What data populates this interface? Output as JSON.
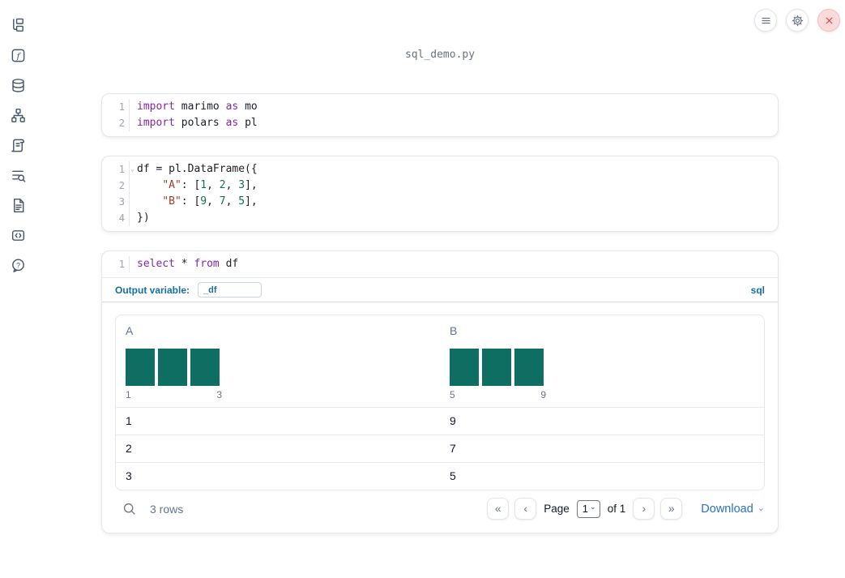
{
  "window": {
    "title": "sql_demo.py"
  },
  "topbar": {
    "buttons": [
      {
        "name": "notebook-menu",
        "icon": "hamburger-icon"
      },
      {
        "name": "settings",
        "icon": "gear-icon"
      },
      {
        "name": "shutdown",
        "icon": "close-icon"
      }
    ]
  },
  "sidebar": {
    "items": [
      {
        "name": "file-explorer",
        "icon": "file-tree-icon"
      },
      {
        "name": "variables",
        "icon": "function-icon"
      },
      {
        "name": "data-sources",
        "icon": "database-icon"
      },
      {
        "name": "dependency-graph",
        "icon": "graph-icon"
      },
      {
        "name": "outline",
        "icon": "scroll-icon"
      },
      {
        "name": "logs",
        "icon": "logs-search-icon"
      },
      {
        "name": "documentation",
        "icon": "document-icon"
      },
      {
        "name": "snippets",
        "icon": "code-snippet-icon"
      },
      {
        "name": "help",
        "icon": "help-icon"
      }
    ]
  },
  "cells": [
    {
      "lines": [
        {
          "num": "1",
          "tokens": [
            [
              "kw",
              "import"
            ],
            [
              "pl",
              " marimo "
            ],
            [
              "kw",
              "as"
            ],
            [
              "pl",
              " mo"
            ]
          ]
        },
        {
          "num": "2",
          "tokens": [
            [
              "kw",
              "import"
            ],
            [
              "pl",
              " polars "
            ],
            [
              "kw",
              "as"
            ],
            [
              "pl",
              " pl"
            ]
          ]
        }
      ]
    },
    {
      "lines": [
        {
          "num": "1",
          "fold": true,
          "tokens": [
            [
              "pl",
              "df = pl.DataFrame({"
            ]
          ]
        },
        {
          "num": "2",
          "tokens": [
            [
              "pl",
              "    "
            ],
            [
              "str",
              "\"A\""
            ],
            [
              "pl",
              ": ["
            ],
            [
              "num",
              "1"
            ],
            [
              "pl",
              ", "
            ],
            [
              "num",
              "2"
            ],
            [
              "pl",
              ", "
            ],
            [
              "num",
              "3"
            ],
            [
              "pl",
              "],"
            ]
          ]
        },
        {
          "num": "3",
          "tokens": [
            [
              "pl",
              "    "
            ],
            [
              "str",
              "\"B\""
            ],
            [
              "pl",
              ": ["
            ],
            [
              "num",
              "9"
            ],
            [
              "pl",
              ", "
            ],
            [
              "num",
              "7"
            ],
            [
              "pl",
              ", "
            ],
            [
              "num",
              "5"
            ],
            [
              "pl",
              "],"
            ]
          ]
        },
        {
          "num": "4",
          "tokens": [
            [
              "pl",
              "})"
            ]
          ]
        }
      ]
    },
    {
      "lines": [
        {
          "num": "1",
          "tokens": [
            [
              "kw",
              "select"
            ],
            [
              "pl",
              " * "
            ],
            [
              "kw",
              "from"
            ],
            [
              "pl",
              " df"
            ]
          ]
        }
      ]
    }
  ],
  "sql_cell": {
    "output_variable_label": "Output variable:",
    "output_variable_value": "_df",
    "language_badge": "sql"
  },
  "table": {
    "columns": [
      {
        "label": "A",
        "hist": {
          "bars": [
            1,
            1,
            1
          ],
          "min_label": "1",
          "max_label": "3"
        }
      },
      {
        "label": "B",
        "hist": {
          "bars": [
            1,
            1,
            1
          ],
          "min_label": "5",
          "max_label": "9"
        }
      }
    ],
    "rows": [
      [
        "1",
        "9"
      ],
      [
        "2",
        "7"
      ],
      [
        "3",
        "5"
      ]
    ],
    "footer": {
      "row_count": "3 rows",
      "page_label": "Page",
      "page_value": "1",
      "of_label": "of 1",
      "download_label": "Download"
    }
  },
  "colors": {
    "keyword": "#8428a8",
    "string": "#a33a29",
    "number": "#11734b",
    "bar": "#0e6e61",
    "accent_blue": "#2a6fc4",
    "sql_blue": "#15709e"
  }
}
